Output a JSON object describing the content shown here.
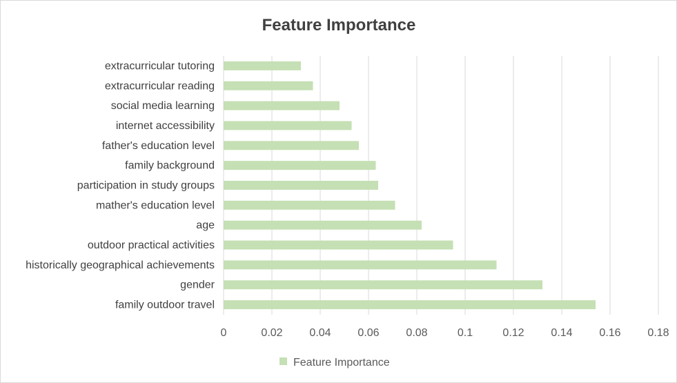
{
  "chart_data": {
    "type": "bar",
    "orientation": "horizontal",
    "title": "Feature Importance",
    "categories": [
      "family outdoor travel",
      "gender",
      "historically geographical achievements",
      "outdoor practical activities",
      "age",
      "mather's education level",
      "participation in study groups",
      "family background",
      "father's education level",
      "internet accessibility",
      "social media learning",
      "extracurricular reading",
      "extracurricular tutoring"
    ],
    "series": [
      {
        "name": "Feature Importance",
        "color": "#c5e0b4",
        "values": [
          0.154,
          0.132,
          0.113,
          0.095,
          0.082,
          0.071,
          0.064,
          0.063,
          0.056,
          0.053,
          0.048,
          0.037,
          0.032
        ]
      }
    ],
    "xlim": [
      0,
      0.18
    ],
    "x_ticks": [
      0,
      0.02,
      0.04,
      0.06,
      0.08,
      0.1,
      0.12,
      0.14,
      0.16,
      0.18
    ],
    "x_tick_labels": [
      "0",
      "0.02",
      "0.04",
      "0.06",
      "0.08",
      "0.1",
      "0.12",
      "0.14",
      "0.16",
      "0.18"
    ],
    "grid": "vertical",
    "legend": "bottom"
  }
}
